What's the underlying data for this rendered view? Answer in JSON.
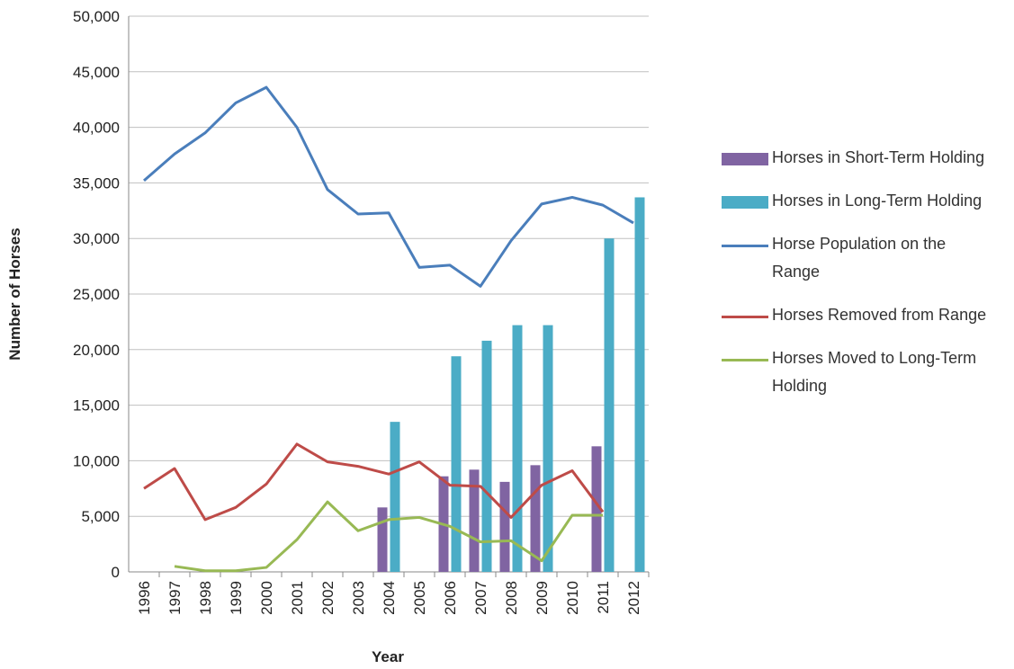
{
  "chart_data": {
    "type": "bar-line",
    "x_label": "Year",
    "y_label": "Number of Horses",
    "categories": [
      "1996",
      "1997",
      "1998",
      "1999",
      "2000",
      "2001",
      "2002",
      "2003",
      "2004",
      "2005",
      "2006",
      "2007",
      "2008",
      "2009",
      "2010",
      "2011",
      "2012"
    ],
    "ylim": [
      0,
      50000
    ],
    "yticks": [
      0,
      {
        "value": 5000,
        "label": "5,000"
      },
      {
        "value": 10000,
        "label": "10,000"
      },
      {
        "value": 15000,
        "label": "15,000"
      },
      {
        "value": 20000,
        "label": "20,000"
      },
      {
        "value": 25000,
        "label": "25,000"
      },
      {
        "value": 30000,
        "label": "30,000"
      },
      {
        "value": 35000,
        "label": "35,000"
      },
      {
        "value": 40000,
        "label": "40,000"
      },
      {
        "value": 45000,
        "label": "45,000"
      },
      {
        "value": 50000,
        "label": "50,000"
      }
    ],
    "grid": true,
    "legend": "right",
    "series": [
      {
        "name": "Horses in Short-Term Holding",
        "kind": "bar",
        "color": "#8064a2",
        "values": [
          null,
          null,
          null,
          null,
          null,
          null,
          null,
          null,
          5800,
          null,
          8600,
          9200,
          8100,
          9600,
          null,
          11300,
          null
        ]
      },
      {
        "name": "Horses in Long-Term Holding",
        "kind": "bar",
        "color": "#4bacc6",
        "values": [
          null,
          null,
          null,
          null,
          null,
          null,
          null,
          null,
          13500,
          null,
          19400,
          20800,
          22200,
          22200,
          null,
          30000,
          33700
        ]
      },
      {
        "name": "Horse Population on the Range",
        "kind": "line",
        "color": "#4a7ebb",
        "values": [
          35200,
          37600,
          39500,
          42200,
          43600,
          40000,
          34400,
          32200,
          32300,
          27400,
          27600,
          25700,
          29800,
          33100,
          33700,
          33000,
          31400
        ]
      },
      {
        "name": "Horses Removed from Range",
        "kind": "line",
        "color": "#be4b48",
        "values": [
          7500,
          9300,
          4700,
          5800,
          7900,
          11500,
          9900,
          9500,
          8800,
          9900,
          7800,
          7700,
          4900,
          7800,
          9100,
          5400,
          null
        ]
      },
      {
        "name": "Horses Moved to Long-Term Holding",
        "kind": "line",
        "color": "#98b954",
        "values": [
          null,
          500,
          100,
          100,
          400,
          2900,
          6300,
          3700,
          4700,
          4900,
          4100,
          2700,
          2800,
          1000,
          5100,
          5100,
          null
        ]
      }
    ]
  }
}
